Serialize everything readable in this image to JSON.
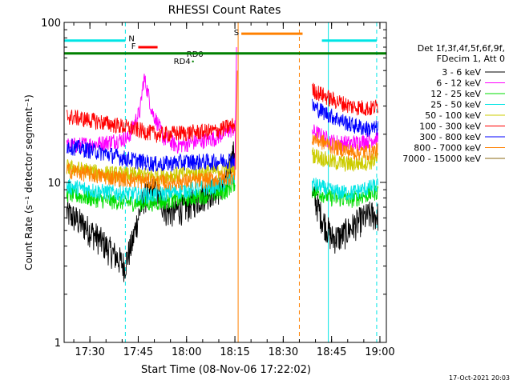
{
  "chart_data": {
    "type": "line",
    "title": "RHESSI Count Rates",
    "xlabel": "Start Time (08-Nov-06 17:22:02)",
    "ylabel": "Count Rate (s⁻¹ detector segment⁻¹)",
    "ylog": true,
    "ylim": [
      1,
      100
    ],
    "xlim": [
      "17:22",
      "19:02"
    ],
    "x_ticks": [
      "17:30",
      "17:45",
      "18:00",
      "18:15",
      "18:30",
      "18:45",
      "19:00"
    ],
    "y_ticks": [
      "1",
      "10",
      "100"
    ],
    "timestamp": "17-Oct-2021 20:03",
    "legend": {
      "placement": "right",
      "header": [
        "Det 1f,3f,4f,5f,6f,9f,",
        "FDecim 1, Att 0"
      ],
      "entries": [
        {
          "name": "3 - 6 keV",
          "color": "#000000"
        },
        {
          "name": "6 - 12 keV",
          "color": "#ff00ff"
        },
        {
          "name": "12 - 25 keV",
          "color": "#00dd00"
        },
        {
          "name": "25 - 50 keV",
          "color": "#00e5e5"
        },
        {
          "name": "50 - 100 keV",
          "color": "#cccc00"
        },
        {
          "name": "100 - 300 keV",
          "color": "#ff0000"
        },
        {
          "name": "300 - 800 keV",
          "color": "#0000ff"
        },
        {
          "name": "800 - 7000 keV",
          "color": "#ff8000"
        },
        {
          "name": "7000 - 15000 keV",
          "color": "#8b6914"
        }
      ]
    },
    "gap": {
      "start": "18:15",
      "end": "18:38"
    },
    "series": [
      {
        "name": "3 - 6 keV",
        "color": "#000000",
        "pre": [
          [
            17.38,
            6.5
          ],
          [
            17.5,
            5.0
          ],
          [
            17.6,
            3.8
          ],
          [
            17.68,
            3.0
          ],
          [
            17.72,
            4.2
          ],
          [
            17.78,
            8.0
          ],
          [
            17.83,
            9.0
          ],
          [
            17.9,
            6.5
          ],
          [
            18.0,
            7.0
          ],
          [
            18.1,
            8.5
          ],
          [
            18.2,
            9.5
          ],
          [
            18.25,
            16
          ]
        ],
        "post": [
          [
            18.65,
            8.5
          ],
          [
            18.7,
            6.0
          ],
          [
            18.75,
            4.5
          ],
          [
            18.8,
            4.6
          ],
          [
            18.85,
            5.2
          ],
          [
            18.9,
            5.8
          ],
          [
            18.95,
            6.3
          ],
          [
            18.99,
            6.2
          ]
        ]
      },
      {
        "name": "6 - 12 keV",
        "color": "#ff00ff",
        "pre": [
          [
            17.38,
            17
          ],
          [
            17.55,
            17.5
          ],
          [
            17.7,
            19
          ],
          [
            17.76,
            28
          ],
          [
            17.78,
            45
          ],
          [
            17.82,
            28
          ],
          [
            17.88,
            19
          ],
          [
            17.95,
            17
          ],
          [
            18.05,
            18
          ],
          [
            18.15,
            19
          ],
          [
            18.25,
            22
          ]
        ],
        "post": [
          [
            18.65,
            21
          ],
          [
            18.75,
            18
          ],
          [
            18.85,
            17.5
          ],
          [
            18.95,
            18.5
          ],
          [
            18.99,
            19
          ]
        ]
      },
      {
        "name": "12 - 25 keV",
        "color": "#00dd00",
        "pre": [
          [
            17.38,
            8.5
          ],
          [
            17.55,
            7.8
          ],
          [
            17.7,
            7.5
          ],
          [
            17.8,
            7.4
          ],
          [
            17.95,
            7.8
          ],
          [
            18.1,
            8.3
          ],
          [
            18.2,
            8.8
          ],
          [
            18.25,
            10
          ]
        ],
        "post": [
          [
            18.65,
            9.0
          ],
          [
            18.75,
            8.0
          ],
          [
            18.85,
            7.8
          ],
          [
            18.95,
            8.5
          ],
          [
            18.99,
            8.8
          ]
        ]
      },
      {
        "name": "25 - 50 keV",
        "color": "#00e5e5",
        "pre": [
          [
            17.38,
            9.5
          ],
          [
            17.55,
            8.8
          ],
          [
            17.7,
            8.5
          ],
          [
            17.8,
            8.3
          ],
          [
            17.95,
            8.8
          ],
          [
            18.1,
            9.3
          ],
          [
            18.2,
            9.8
          ],
          [
            18.25,
            11
          ]
        ],
        "post": [
          [
            18.65,
            9.8
          ],
          [
            18.75,
            8.8
          ],
          [
            18.85,
            8.6
          ],
          [
            18.95,
            9.3
          ],
          [
            18.99,
            9.6
          ]
        ]
      },
      {
        "name": "50 - 100 keV",
        "color": "#cccc00",
        "pre": [
          [
            17.38,
            12.5
          ],
          [
            17.55,
            11.5
          ],
          [
            17.7,
            11.2
          ],
          [
            17.85,
            11
          ],
          [
            18.0,
            11.3
          ],
          [
            18.15,
            11.8
          ],
          [
            18.25,
            12.5
          ]
        ],
        "post": [
          [
            18.65,
            15
          ],
          [
            18.75,
            13.5
          ],
          [
            18.85,
            13
          ],
          [
            18.95,
            13.5
          ],
          [
            18.99,
            14
          ]
        ]
      },
      {
        "name": "100 - 300 keV",
        "color": "#ff0000",
        "pre": [
          [
            17.38,
            26
          ],
          [
            17.55,
            24
          ],
          [
            17.7,
            22
          ],
          [
            17.85,
            20
          ],
          [
            18.0,
            20.5
          ],
          [
            18.15,
            21
          ],
          [
            18.25,
            23
          ]
        ],
        "post": [
          [
            18.65,
            38
          ],
          [
            18.75,
            33
          ],
          [
            18.85,
            30
          ],
          [
            18.95,
            29
          ],
          [
            18.99,
            30
          ]
        ]
      },
      {
        "name": "300 - 800 keV",
        "color": "#0000ff",
        "pre": [
          [
            17.38,
            17
          ],
          [
            17.55,
            15.5
          ],
          [
            17.7,
            14
          ],
          [
            17.85,
            13
          ],
          [
            18.0,
            13.5
          ],
          [
            18.15,
            13.5
          ],
          [
            18.25,
            14
          ]
        ],
        "post": [
          [
            18.65,
            30
          ],
          [
            18.75,
            26
          ],
          [
            18.85,
            23
          ],
          [
            18.95,
            21.5
          ],
          [
            18.99,
            22
          ]
        ]
      },
      {
        "name": "800 - 7000 keV",
        "color": "#ff8000",
        "pre": [
          [
            17.38,
            12
          ],
          [
            17.55,
            11
          ],
          [
            17.7,
            10.5
          ],
          [
            17.85,
            10
          ],
          [
            18.0,
            10.2
          ],
          [
            18.15,
            10.5
          ],
          [
            18.25,
            11
          ]
        ],
        "post": [
          [
            18.65,
            19
          ],
          [
            18.75,
            17
          ],
          [
            18.85,
            15.5
          ],
          [
            18.95,
            15.5
          ],
          [
            18.99,
            16
          ]
        ]
      }
    ],
    "attenuator_bars": [
      {
        "label": "",
        "color": "#00e5e5",
        "start": "17:22",
        "end": "17:41",
        "y": 77
      },
      {
        "label": "",
        "color": "#00e5e5",
        "start": "18:42",
        "end": "18:59",
        "y": 77
      },
      {
        "label": "N",
        "color": "#00e5e5",
        "x": "17:42",
        "y": 79
      },
      {
        "label": "F",
        "color": "#ff0000",
        "start": "17:45",
        "end": "17:51",
        "y": 70
      },
      {
        "label": "RD0",
        "color": "#008000",
        "x": "18:00",
        "y": 63
      },
      {
        "label": "RD4",
        "color": "#008000",
        "x": "17:56",
        "y": 57
      },
      {
        "label": "S",
        "color": "#ff8000",
        "start": "18:17",
        "end": "18:36",
        "y": 85
      },
      {
        "label": "",
        "color": "#008000",
        "start": "17:22",
        "end": "19:02",
        "y": 64
      }
    ],
    "vlines": [
      {
        "x": "17:22",
        "color": "#00e5e5",
        "style": "solid"
      },
      {
        "x": "17:41",
        "color": "#00e5e5",
        "style": "dashed"
      },
      {
        "x": "18:16",
        "color": "#ff8000",
        "style": "solid"
      },
      {
        "x": "18:35",
        "color": "#ff8000",
        "style": "dashed"
      },
      {
        "x": "18:44",
        "color": "#00e5e5",
        "style": "solid"
      },
      {
        "x": "18:59",
        "color": "#00e5e5",
        "style": "dashed"
      }
    ]
  }
}
